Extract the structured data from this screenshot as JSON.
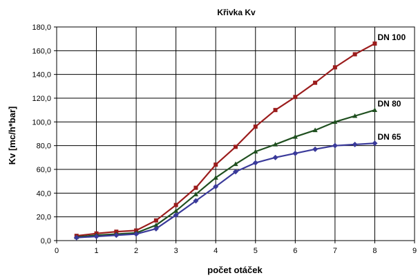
{
  "chart_data": {
    "type": "line",
    "title": "Křivka Kv",
    "xlabel": "počet otáček",
    "ylabel": "Kv [mc/h*bar]",
    "xlim": [
      0,
      9
    ],
    "ylim": [
      0,
      180
    ],
    "xticks": [
      "0",
      "1",
      "2",
      "3",
      "4",
      "5",
      "6",
      "7",
      "8",
      "9"
    ],
    "yticks": [
      "0,0",
      "20,0",
      "40,0",
      "60,0",
      "80,0",
      "100,0",
      "120,0",
      "140,0",
      "160,0",
      "180,0"
    ],
    "grid": true,
    "legend": "inline labels at line ends",
    "x": [
      0.5,
      1,
      1.5,
      2,
      2.5,
      3,
      3.5,
      4,
      4.5,
      5,
      5.5,
      6,
      6.5,
      7,
      7.5,
      8
    ],
    "series": [
      {
        "name": "DN 100",
        "color": "#9b1c1c",
        "marker": "square",
        "values": [
          4,
          6,
          7.5,
          8.5,
          17,
          30,
          44.5,
          64,
          79,
          96,
          110,
          121,
          133,
          146,
          157,
          166
        ]
      },
      {
        "name": "DN 80",
        "color": "#1f4f1f",
        "marker": "triangle",
        "values": [
          3,
          4.5,
          5.5,
          6.5,
          13,
          25,
          39,
          53,
          64.5,
          75,
          81,
          87.5,
          93,
          100,
          105,
          110
        ]
      },
      {
        "name": "DN 65",
        "color": "#3a3a9a",
        "marker": "diamond",
        "values": [
          2.5,
          3.5,
          4.5,
          5.5,
          10,
          21.5,
          33.5,
          45.5,
          58,
          65.5,
          70,
          73.5,
          77,
          80,
          81,
          82
        ]
      }
    ]
  }
}
